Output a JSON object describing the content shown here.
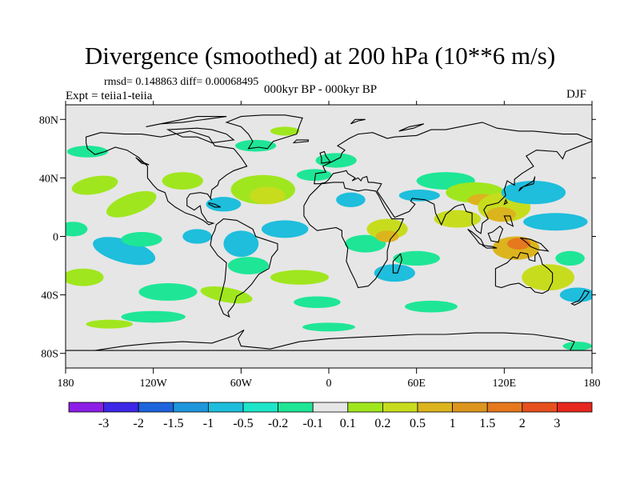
{
  "title": "Divergence (smoothed) at 200 hPa (10**6 m/s)",
  "stats": "rmsd= 0.148863  diff= 0.00068495",
  "experiment": "Expt = teiia1-teiia",
  "period": "000kyr BP - 000kyr BP",
  "season": "DJF",
  "map": {
    "lon_range": [
      -180,
      180
    ],
    "lat_range": [
      -90,
      90
    ],
    "background_color": "#e6e6e6",
    "x_ticks": [
      {
        "lon": -180,
        "label": "180"
      },
      {
        "lon": -120,
        "label": "120W"
      },
      {
        "lon": -60,
        "label": "60W"
      },
      {
        "lon": 0,
        "label": "0"
      },
      {
        "lon": 60,
        "label": "60E"
      },
      {
        "lon": 120,
        "label": "120E"
      },
      {
        "lon": 180,
        "label": "180"
      }
    ],
    "y_ticks": [
      {
        "lat": 80,
        "label": "80N"
      },
      {
        "lat": 40,
        "label": "40N"
      },
      {
        "lat": 0,
        "label": "0"
      },
      {
        "lat": -40,
        "label": "40S"
      },
      {
        "lat": -80,
        "label": "80S"
      }
    ]
  },
  "colorbar": {
    "colors": [
      "#8c1ee6",
      "#3c28e6",
      "#1e64dc",
      "#1e96dc",
      "#1ebedc",
      "#1ee6c8",
      "#1ee696",
      "#e6e6e6",
      "#a0e61e",
      "#c8dc1e",
      "#dcb41e",
      "#dc961e",
      "#e6781e",
      "#e6501e",
      "#e6281e"
    ],
    "labels": [
      "-3",
      "-2",
      "-1.5",
      "-1",
      "-0.5",
      "-0.2",
      "-0.1",
      "0.1",
      "0.2",
      "0.5",
      "1",
      "1.5",
      "2",
      "3"
    ]
  }
}
